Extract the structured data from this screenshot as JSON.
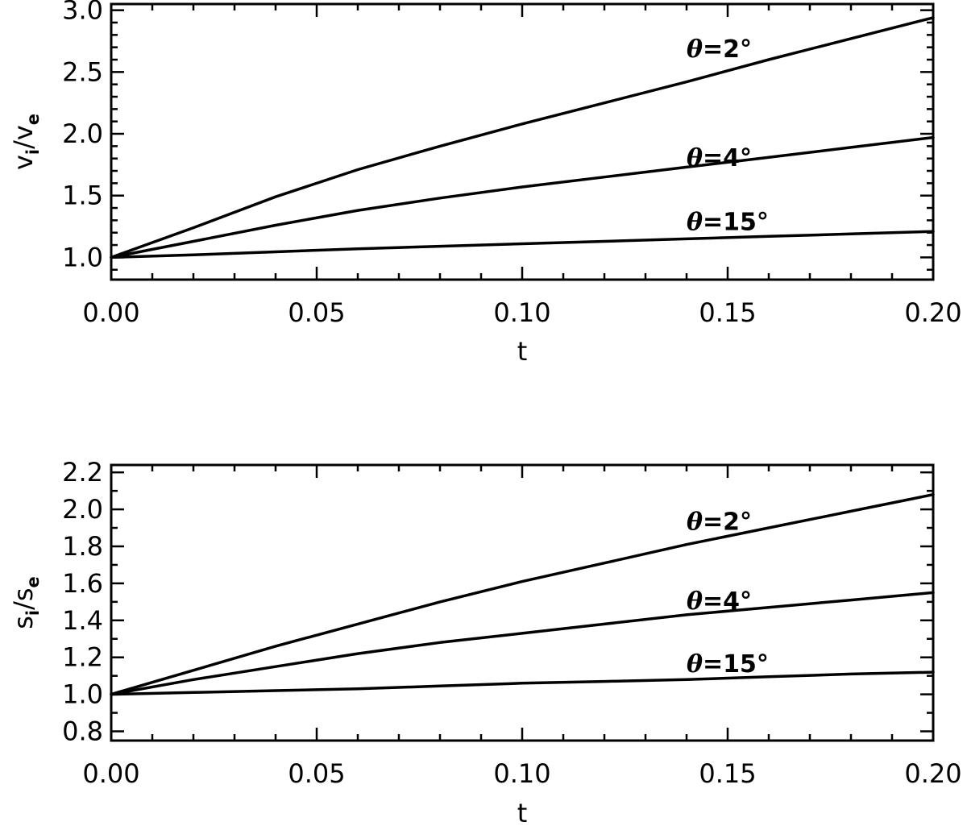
{
  "chart_data": [
    {
      "type": "line",
      "title": "",
      "xlabel": "t",
      "ylabel": {
        "main1": "v",
        "sub1": "i",
        "sep": "/",
        "main2": "v",
        "sub2": "e"
      },
      "xlim": [
        0.0,
        0.2
      ],
      "ylim": [
        0.82,
        3.05
      ],
      "xticks": [
        0.0,
        0.05,
        0.1,
        0.15,
        0.2
      ],
      "xtick_labels": [
        "0.00",
        "0.05",
        "0.10",
        "0.15",
        "0.20"
      ],
      "xminor": [
        0.01,
        0.02,
        0.03,
        0.04,
        0.06,
        0.07,
        0.08,
        0.09,
        0.11,
        0.12,
        0.13,
        0.14,
        0.16,
        0.17,
        0.18,
        0.19
      ],
      "yticks": [
        1.0,
        1.5,
        2.0,
        2.5,
        3.0
      ],
      "ytick_labels": [
        "1.0",
        "1.5",
        "2.0",
        "2.5",
        "3.0"
      ],
      "yminor": [
        0.9,
        1.1,
        1.2,
        1.3,
        1.4,
        1.6,
        1.7,
        1.8,
        1.9,
        2.1,
        2.2,
        2.3,
        2.4,
        2.6,
        2.7,
        2.8,
        2.9
      ],
      "grid": false,
      "legend": "none",
      "x": [
        0.0,
        0.02,
        0.04,
        0.06,
        0.08,
        0.1,
        0.12,
        0.14,
        0.16,
        0.18,
        0.2
      ],
      "series": [
        {
          "values": [
            1.0,
            1.24,
            1.49,
            1.71,
            1.9,
            2.08,
            2.25,
            2.42,
            2.6,
            2.77,
            2.94
          ]
        },
        {
          "values": [
            1.0,
            1.13,
            1.26,
            1.38,
            1.48,
            1.57,
            1.65,
            1.73,
            1.81,
            1.89,
            1.97
          ]
        },
        {
          "values": [
            1.0,
            1.02,
            1.045,
            1.07,
            1.09,
            1.11,
            1.13,
            1.15,
            1.17,
            1.19,
            1.21
          ]
        }
      ],
      "annotations": [
        {
          "prefix": "θ",
          "text": "=2°",
          "x": 0.14,
          "y": 2.62
        },
        {
          "prefix": "θ",
          "text": "=4°",
          "x": 0.14,
          "y": 1.74
        },
        {
          "prefix": "θ",
          "text": "=15°",
          "x": 0.14,
          "y": 1.22
        }
      ]
    },
    {
      "type": "line",
      "title": "",
      "xlabel": "t",
      "ylabel": {
        "main1": "s",
        "sub1": "i",
        "sep": "/",
        "main2": "s",
        "sub2": "e"
      },
      "xlim": [
        0.0,
        0.2
      ],
      "ylim": [
        0.75,
        2.24
      ],
      "xticks": [
        0.0,
        0.05,
        0.1,
        0.15,
        0.2
      ],
      "xtick_labels": [
        "0.00",
        "0.05",
        "0.10",
        "0.15",
        "0.20"
      ],
      "xminor": [
        0.01,
        0.02,
        0.03,
        0.04,
        0.06,
        0.07,
        0.08,
        0.09,
        0.11,
        0.12,
        0.13,
        0.14,
        0.16,
        0.17,
        0.18,
        0.19
      ],
      "yticks": [
        0.8,
        1.0,
        1.2,
        1.4,
        1.6,
        1.8,
        2.0,
        2.2
      ],
      "ytick_labels": [
        "0.8",
        "1.0",
        "1.2",
        "1.4",
        "1.6",
        "1.8",
        "2.0",
        "2.2"
      ],
      "yminor": [
        0.9,
        1.1,
        1.3,
        1.5,
        1.7,
        1.9,
        2.1
      ],
      "grid": false,
      "legend": "none",
      "x": [
        0.0,
        0.02,
        0.04,
        0.06,
        0.08,
        0.1,
        0.12,
        0.14,
        0.16,
        0.18,
        0.2
      ],
      "series": [
        {
          "values": [
            1.0,
            1.13,
            1.26,
            1.38,
            1.5,
            1.61,
            1.71,
            1.81,
            1.9,
            1.99,
            2.08
          ]
        },
        {
          "values": [
            1.0,
            1.08,
            1.15,
            1.22,
            1.28,
            1.33,
            1.38,
            1.43,
            1.47,
            1.51,
            1.55
          ]
        },
        {
          "values": [
            1.0,
            1.01,
            1.02,
            1.03,
            1.045,
            1.06,
            1.07,
            1.08,
            1.095,
            1.11,
            1.12
          ]
        }
      ],
      "annotations": [
        {
          "prefix": "θ",
          "text": "=2°",
          "x": 0.14,
          "y": 1.89
        },
        {
          "prefix": "θ",
          "text": "=4°",
          "x": 0.14,
          "y": 1.46
        },
        {
          "prefix": "θ",
          "text": "=15°",
          "x": 0.14,
          "y": 1.12
        }
      ]
    }
  ]
}
